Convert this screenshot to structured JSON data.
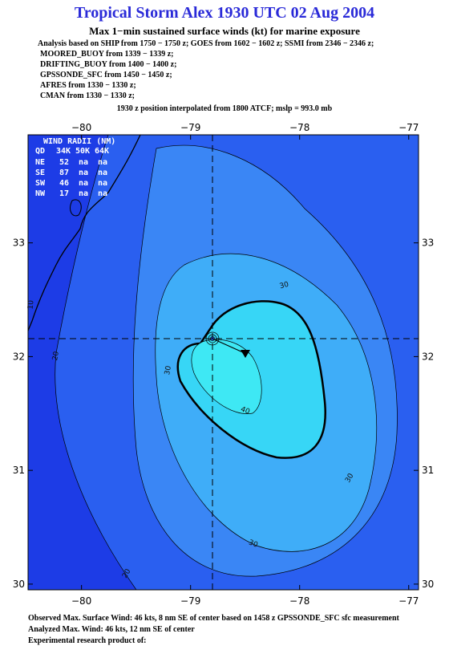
{
  "header": {
    "title": "Tropical Storm Alex 1930 UTC 02 Aug 2004",
    "subtitle": "Max 1−min sustained surface winds (kt) for marine exposure",
    "sources": [
      "Analysis based on  SHIP from 1750 − 1750 z;  GOES from 1602 − 1602 z;  SSMI from 2346 − 2346 z;",
      "MOORED_BUOY from 1339 − 1339 z;",
      "DRIFTING_BUOY from 1400 − 1400 z;",
      "GPSSONDE_SFC from 1450 − 1450 z;",
      "AFRES from 1330 − 1330 z;",
      "CMAN from 1330 − 1330 z;"
    ],
    "position": "1930 z position interpolated from 1800 ATCF; mslp = 993.0 mb"
  },
  "map": {
    "lonlim": [
      -80.49,
      -76.91
    ],
    "latlim": [
      29.95,
      33.95
    ],
    "lon_ticks": [
      {
        "value": -80,
        "label": "−80"
      },
      {
        "value": -79,
        "label": "−79"
      },
      {
        "value": -78,
        "label": "−78"
      },
      {
        "value": -77,
        "label": "−77"
      }
    ],
    "lat_ticks": [
      33,
      32,
      31,
      30
    ],
    "contour_labels": [
      30,
      30,
      30,
      30,
      40,
      20,
      20,
      10
    ]
  },
  "wind_radii": {
    "title": "WIND RADII (NM)",
    "columns": [
      "QD",
      "34K",
      "50K",
      "64K"
    ],
    "rows": [
      [
        "NE",
        52,
        "na",
        "na"
      ],
      [
        "SE",
        87,
        "na",
        "na"
      ],
      [
        "SW",
        46,
        "na",
        "na"
      ],
      [
        "NW",
        17,
        "na",
        "na"
      ]
    ]
  },
  "footer": [
    "Observed Max. Surface Wind: 46 kts, 8 nm SE of center based on 1458 z GPSSONDE_SFC sfc measurement",
    "Analyzed Max. Wind: 46 kts, 12 nm SE of center",
    "Experimental research product of:"
  ]
}
